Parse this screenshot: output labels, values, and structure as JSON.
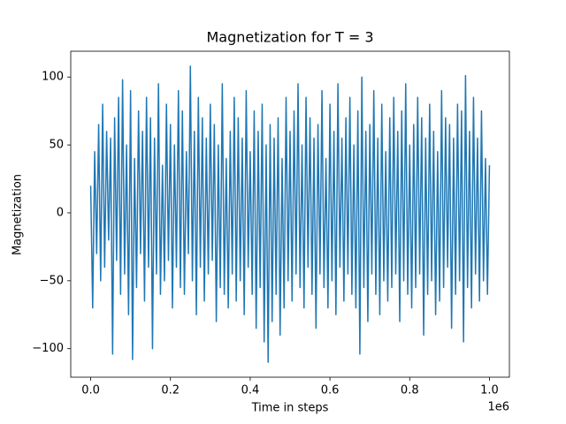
{
  "chart_data": {
    "type": "line",
    "title": "Magnetization for T = 3",
    "xlabel": "Time in steps",
    "ylabel": "Magnetization",
    "x_offset_label": "1e6",
    "xlim": [
      -50000,
      1050000
    ],
    "ylim": [
      -121,
      119
    ],
    "xticks": [
      {
        "value": 0,
        "label": "0.0"
      },
      {
        "value": 200000,
        "label": "0.2"
      },
      {
        "value": 400000,
        "label": "0.4"
      },
      {
        "value": 600000,
        "label": "0.6"
      },
      {
        "value": 800000,
        "label": "0.8"
      },
      {
        "value": 1000000,
        "label": "1.0"
      }
    ],
    "yticks": [
      {
        "value": -100,
        "label": "−100"
      },
      {
        "value": -50,
        "label": "−50"
      },
      0,
      50,
      100
    ],
    "grid": false,
    "x": [
      0,
      5000,
      10000,
      15000,
      20000,
      25000,
      30000,
      35000,
      40000,
      45000,
      50000,
      55000,
      60000,
      65000,
      70000,
      75000,
      80000,
      85000,
      90000,
      95000,
      100000,
      105000,
      110000,
      115000,
      120000,
      125000,
      130000,
      135000,
      140000,
      145000,
      150000,
      155000,
      160000,
      165000,
      170000,
      175000,
      180000,
      185000,
      190000,
      195000,
      200000,
      205000,
      210000,
      215000,
      220000,
      225000,
      230000,
      235000,
      240000,
      245000,
      250000,
      255000,
      260000,
      265000,
      270000,
      275000,
      280000,
      285000,
      290000,
      295000,
      300000,
      305000,
      310000,
      315000,
      320000,
      325000,
      330000,
      335000,
      340000,
      345000,
      350000,
      355000,
      360000,
      365000,
      370000,
      375000,
      380000,
      385000,
      390000,
      395000,
      400000,
      405000,
      410000,
      415000,
      420000,
      425000,
      430000,
      435000,
      440000,
      445000,
      450000,
      455000,
      460000,
      465000,
      470000,
      475000,
      480000,
      485000,
      490000,
      495000,
      500000,
      505000,
      510000,
      515000,
      520000,
      525000,
      530000,
      535000,
      540000,
      545000,
      550000,
      555000,
      560000,
      565000,
      570000,
      575000,
      580000,
      585000,
      590000,
      595000,
      600000,
      605000,
      610000,
      615000,
      620000,
      625000,
      630000,
      635000,
      640000,
      645000,
      650000,
      655000,
      660000,
      665000,
      670000,
      675000,
      680000,
      685000,
      690000,
      695000,
      700000,
      705000,
      710000,
      715000,
      720000,
      725000,
      730000,
      735000,
      740000,
      745000,
      750000,
      755000,
      760000,
      765000,
      770000,
      775000,
      780000,
      785000,
      790000,
      795000,
      800000,
      805000,
      810000,
      815000,
      820000,
      825000,
      830000,
      835000,
      840000,
      845000,
      850000,
      855000,
      860000,
      865000,
      870000,
      875000,
      880000,
      885000,
      890000,
      895000,
      900000,
      905000,
      910000,
      915000,
      920000,
      925000,
      930000,
      935000,
      940000,
      945000,
      950000,
      955000,
      960000,
      965000,
      970000,
      975000,
      980000,
      985000,
      990000,
      995000,
      1000000
    ],
    "series": [
      {
        "name": "Magnetization",
        "color": "#1f77b4",
        "values": [
          20,
          -70,
          45,
          -30,
          65,
          -50,
          80,
          -40,
          60,
          -20,
          55,
          -104,
          70,
          -35,
          85,
          -60,
          98,
          -45,
          50,
          -75,
          90,
          -108,
          40,
          -55,
          75,
          -30,
          60,
          -65,
          85,
          -40,
          70,
          -100,
          55,
          -45,
          95,
          -60,
          35,
          -50,
          80,
          -35,
          65,
          -70,
          50,
          -40,
          90,
          -55,
          75,
          -60,
          45,
          -30,
          108,
          -50,
          60,
          -75,
          85,
          -40,
          70,
          -65,
          55,
          -45,
          80,
          -35,
          65,
          -80,
          50,
          -55,
          95,
          -60,
          40,
          -70,
          60,
          -45,
          85,
          -65,
          70,
          -50,
          55,
          -75,
          90,
          -40,
          45,
          -60,
          75,
          -85,
          60,
          -55,
          80,
          -95,
          50,
          -110,
          65,
          -80,
          55,
          -60,
          70,
          -90,
          40,
          -70,
          85,
          -50,
          60,
          -65,
          75,
          -45,
          95,
          -55,
          50,
          -70,
          85,
          -40,
          70,
          -60,
          55,
          -85,
          65,
          -45,
          90,
          -55,
          40,
          -70,
          80,
          -50,
          60,
          -75,
          95,
          -40,
          55,
          -65,
          70,
          -45,
          85,
          -60,
          50,
          -70,
          75,
          -104,
          100,
          -55,
          60,
          -80,
          65,
          -45,
          90,
          -60,
          55,
          -75,
          80,
          -50,
          45,
          -65,
          70,
          -55,
          85,
          -45,
          60,
          -80,
          75,
          -50,
          95,
          -60,
          50,
          -70,
          65,
          -55,
          85,
          -45,
          70,
          -90,
          55,
          -60,
          80,
          -50,
          60,
          -75,
          45,
          -65,
          90,
          -55,
          70,
          -40,
          65,
          -85,
          55,
          -60,
          80,
          -50,
          75,
          -95,
          101,
          -55,
          60,
          -70,
          85,
          -45,
          55,
          -65,
          75,
          -50,
          40,
          -60,
          35
        ]
      }
    ]
  }
}
